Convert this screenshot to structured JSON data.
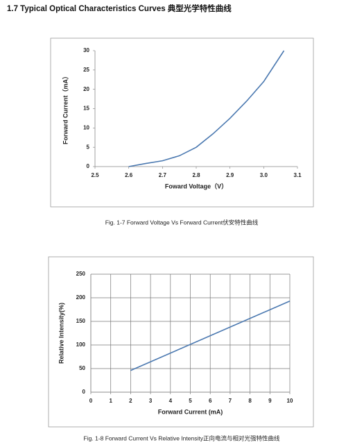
{
  "heading": "1.7 Typical Optical Characteristics Curves 典型光学特性曲线",
  "chart_data": [
    {
      "type": "line",
      "xlabel": "Foward Voltage（V）",
      "ylabel": "Forward Current（mA）",
      "caption": "Fig. 1-7 Forward Voltage Vs Forward Current伏安特性曲线",
      "x": [
        2.6,
        2.65,
        2.7,
        2.75,
        2.8,
        2.85,
        2.9,
        2.95,
        3.0,
        3.06
      ],
      "series": [
        {
          "color": "#4a78b0",
          "values": [
            0,
            0.8,
            1.5,
            2.8,
            5,
            8.5,
            12.5,
            17,
            22,
            30
          ]
        }
      ],
      "xlim": [
        2.5,
        3.1
      ],
      "xticks": [
        2.5,
        2.6,
        2.7,
        2.8,
        2.9,
        {
          "value": 3,
          "label": "3.0"
        },
        3.1
      ],
      "ylim": [
        0,
        30
      ],
      "yticks": [
        0,
        5,
        10,
        15,
        20,
        25,
        30
      ],
      "grid": false
    },
    {
      "type": "line",
      "xlabel": "Forward Current (mA)",
      "ylabel": "Relative Intensity(%)",
      "caption": "Fig. 1-8 Forward Current Vs Relative Intensity正向电流与相对光强特性曲线",
      "x": [
        2,
        10
      ],
      "series": [
        {
          "color": "#4a78b0",
          "values": [
            46,
            193
          ]
        }
      ],
      "xlim": [
        0,
        10
      ],
      "xticks": [
        0,
        1,
        2,
        3,
        4,
        5,
        6,
        7,
        8,
        9,
        10
      ],
      "ylim": [
        0,
        250
      ],
      "yticks": [
        0,
        50,
        100,
        150,
        200,
        250
      ],
      "grid": true
    }
  ]
}
